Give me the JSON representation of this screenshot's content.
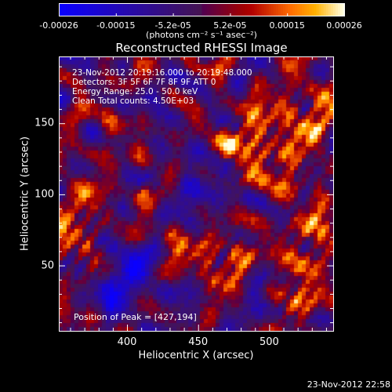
{
  "colorbar": {
    "tick_labels": [
      "-0.00026",
      "-0.00015",
      "-5.2e-05",
      "5.2e-05",
      "0.00015",
      "0.00026"
    ],
    "units": "(photons cm⁻² s⁻¹ asec⁻²)"
  },
  "title": "Reconstructed RHESSI Image",
  "info": {
    "time": "23-Nov-2012 20:19:16.000 to 20:19:48.000",
    "detectors": "Detectors: 3F 5F 6F 7F 8F 9F ATT 0",
    "energy": "Energy Range: 25.0 - 50.0 keV",
    "clean": "Clean    Total counts: 4.50E+03"
  },
  "peak": "Position of Peak = [427,194]",
  "axes": {
    "xlabel": "Heliocentric X (arcsec)",
    "ylabel": "Heliocentric Y (arcsec)",
    "x_ticks": [
      "400",
      "450",
      "500"
    ],
    "y_ticks": [
      "50",
      "100",
      "150"
    ],
    "xlim": [
      352,
      545
    ],
    "ylim": [
      4,
      197
    ]
  },
  "footer": "23-Nov-2012 22:58",
  "colors": {
    "background": "#000000",
    "text": "#ffffff"
  }
}
